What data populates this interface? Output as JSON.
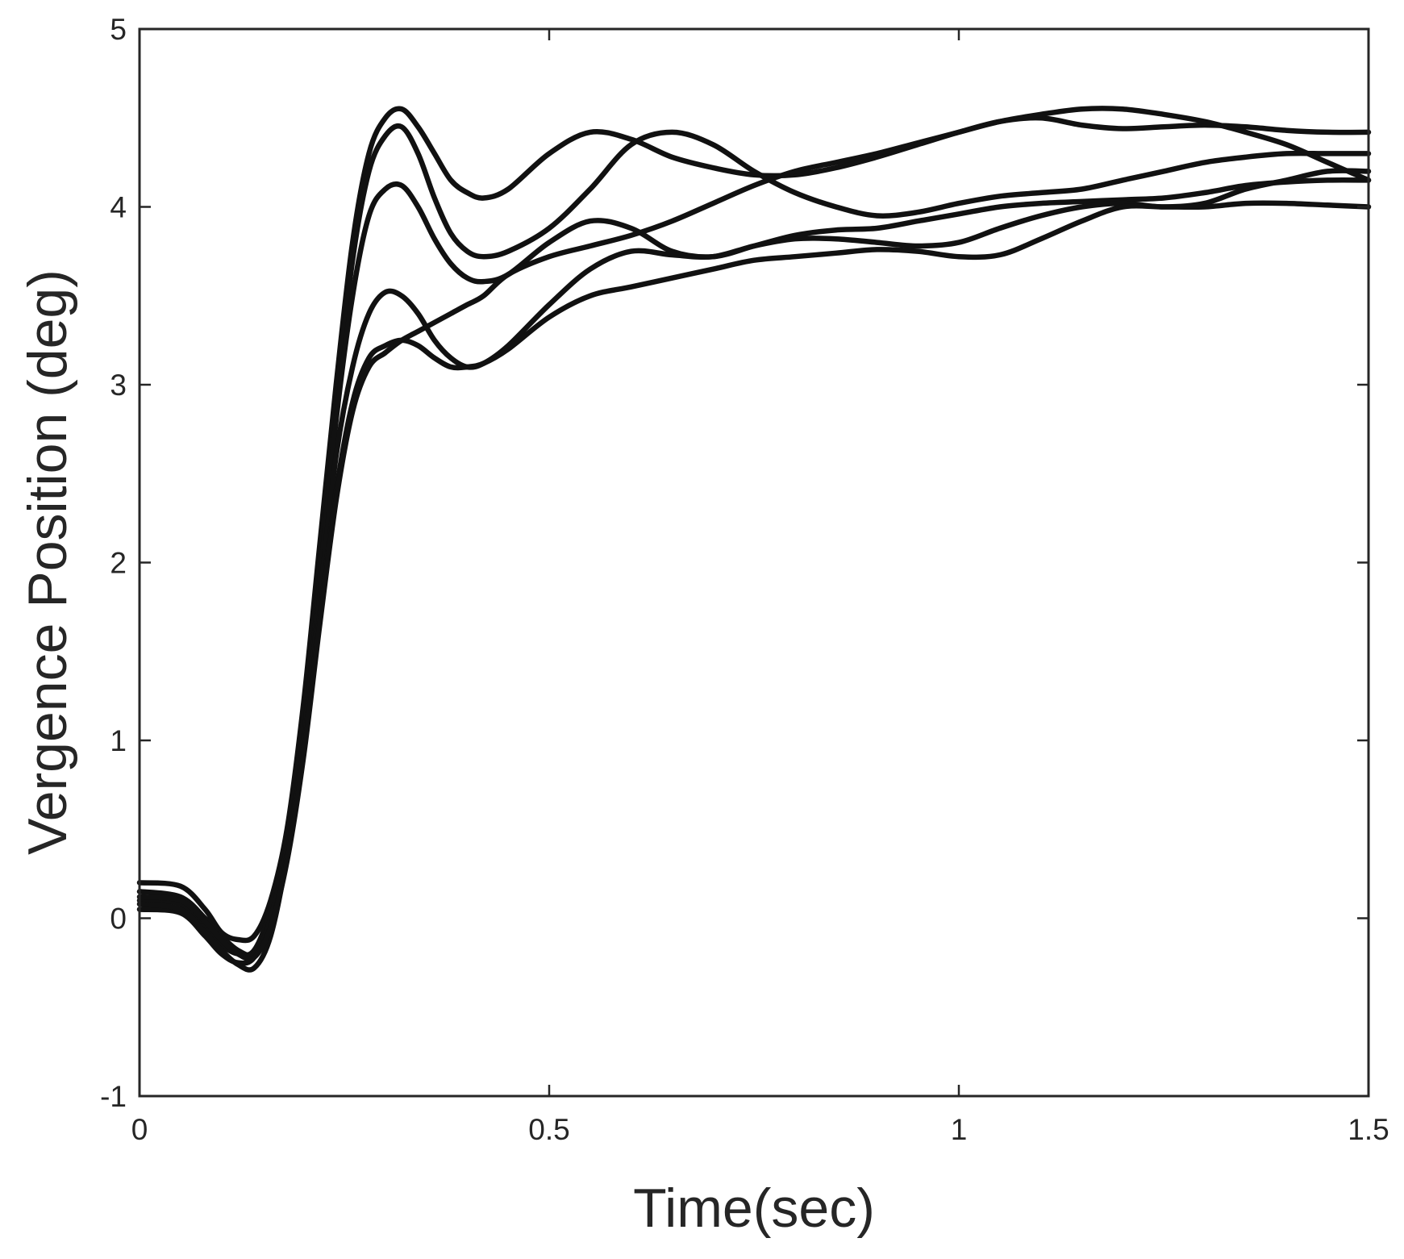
{
  "chart_data": {
    "type": "line",
    "title": "",
    "xlabel": "Time(sec)",
    "ylabel": "Vergence Position (deg)",
    "xlim": [
      0,
      1.5
    ],
    "ylim": [
      -1,
      5
    ],
    "xticks": [
      0,
      0.5,
      1,
      1.5
    ],
    "xtick_labels": [
      "0",
      "0.5",
      "1",
      "1.5"
    ],
    "yticks": [
      -1,
      0,
      1,
      2,
      3,
      4,
      5
    ],
    "ytick_labels": [
      "-1",
      "0",
      "1",
      "2",
      "3",
      "4",
      "5"
    ],
    "grid": false,
    "legend": "none",
    "line_color": "#111111",
    "series": [
      {
        "x": [
          0,
          0.05,
          0.08,
          0.1,
          0.12,
          0.14,
          0.16,
          0.18,
          0.2,
          0.22,
          0.24,
          0.26,
          0.28,
          0.3,
          0.32,
          0.34,
          0.36,
          0.38,
          0.4,
          0.42,
          0.45,
          0.5,
          0.55,
          0.6,
          0.65,
          0.7,
          0.75,
          0.8,
          0.85,
          0.9,
          0.95,
          1.0,
          1.05,
          1.1,
          1.15,
          1.2,
          1.25,
          1.3,
          1.35,
          1.4,
          1.45,
          1.5
        ],
        "y": [
          0.2,
          0.18,
          0.05,
          -0.08,
          -0.12,
          -0.1,
          0.1,
          0.5,
          1.2,
          2.1,
          3.0,
          3.8,
          4.3,
          4.5,
          4.55,
          4.45,
          4.3,
          4.15,
          4.08,
          4.05,
          4.1,
          4.3,
          4.42,
          4.38,
          4.28,
          4.22,
          4.18,
          4.18,
          4.22,
          4.28,
          4.35,
          4.42,
          4.48,
          4.5,
          4.46,
          4.44,
          4.45,
          4.46,
          4.45,
          4.43,
          4.42,
          4.42
        ]
      },
      {
        "x": [
          0,
          0.05,
          0.08,
          0.1,
          0.12,
          0.14,
          0.16,
          0.18,
          0.2,
          0.22,
          0.24,
          0.26,
          0.28,
          0.3,
          0.32,
          0.34,
          0.36,
          0.38,
          0.4,
          0.42,
          0.45,
          0.5,
          0.55,
          0.6,
          0.65,
          0.7,
          0.75,
          0.8,
          0.85,
          0.9,
          0.95,
          1.0,
          1.05,
          1.1,
          1.15,
          1.2,
          1.25,
          1.3,
          1.35,
          1.4,
          1.45,
          1.5
        ],
        "y": [
          0.1,
          0.08,
          -0.05,
          -0.15,
          -0.2,
          -0.18,
          0.05,
          0.45,
          1.1,
          2.0,
          2.9,
          3.7,
          4.2,
          4.4,
          4.45,
          4.3,
          4.05,
          3.85,
          3.75,
          3.72,
          3.75,
          3.88,
          4.1,
          4.35,
          4.42,
          4.35,
          4.2,
          4.08,
          4.0,
          3.95,
          3.97,
          4.02,
          4.06,
          4.08,
          4.1,
          4.15,
          4.2,
          4.25,
          4.28,
          4.3,
          4.3,
          4.3
        ]
      },
      {
        "x": [
          0,
          0.05,
          0.08,
          0.1,
          0.12,
          0.14,
          0.16,
          0.18,
          0.2,
          0.22,
          0.24,
          0.26,
          0.28,
          0.3,
          0.32,
          0.34,
          0.36,
          0.38,
          0.4,
          0.42,
          0.45,
          0.5,
          0.55,
          0.6,
          0.65,
          0.7,
          0.75,
          0.8,
          0.85,
          0.9,
          0.95,
          1.0,
          1.05,
          1.1,
          1.15,
          1.2,
          1.25,
          1.3,
          1.35,
          1.4,
          1.45,
          1.5
        ],
        "y": [
          0.05,
          0.03,
          -0.1,
          -0.2,
          -0.25,
          -0.22,
          0.0,
          0.4,
          1.0,
          1.9,
          2.8,
          3.5,
          3.95,
          4.1,
          4.12,
          4.0,
          3.82,
          3.68,
          3.6,
          3.58,
          3.62,
          3.8,
          3.92,
          3.88,
          3.75,
          3.72,
          3.78,
          3.84,
          3.87,
          3.88,
          3.92,
          3.96,
          4.0,
          4.02,
          4.03,
          4.04,
          4.05,
          4.08,
          4.12,
          4.14,
          4.15,
          4.15
        ]
      },
      {
        "x": [
          0,
          0.05,
          0.08,
          0.1,
          0.12,
          0.14,
          0.16,
          0.18,
          0.2,
          0.22,
          0.24,
          0.26,
          0.28,
          0.3,
          0.32,
          0.34,
          0.36,
          0.38,
          0.4,
          0.42,
          0.45,
          0.5,
          0.55,
          0.6,
          0.65,
          0.7,
          0.75,
          0.8,
          0.85,
          0.9,
          0.95,
          1.0,
          1.05,
          1.1,
          1.15,
          1.2,
          1.25,
          1.3,
          1.35,
          1.4,
          1.45,
          1.5
        ],
        "y": [
          0.08,
          0.05,
          -0.08,
          -0.18,
          -0.26,
          -0.28,
          -0.1,
          0.35,
          1.0,
          1.8,
          2.6,
          3.1,
          3.4,
          3.52,
          3.5,
          3.4,
          3.25,
          3.15,
          3.1,
          3.12,
          3.22,
          3.45,
          3.65,
          3.75,
          3.73,
          3.72,
          3.78,
          3.82,
          3.82,
          3.8,
          3.78,
          3.8,
          3.88,
          3.95,
          4.0,
          4.02,
          4.0,
          4.02,
          4.1,
          4.15,
          4.2,
          4.2
        ]
      },
      {
        "x": [
          0,
          0.05,
          0.08,
          0.1,
          0.12,
          0.14,
          0.16,
          0.18,
          0.2,
          0.22,
          0.24,
          0.26,
          0.28,
          0.3,
          0.32,
          0.34,
          0.36,
          0.38,
          0.4,
          0.42,
          0.45,
          0.5,
          0.55,
          0.6,
          0.65,
          0.7,
          0.75,
          0.8,
          0.85,
          0.9,
          0.95,
          1.0,
          1.05,
          1.1,
          1.15,
          1.2,
          1.25,
          1.3,
          1.35,
          1.4,
          1.45,
          1.5
        ],
        "y": [
          0.15,
          0.12,
          0.0,
          -0.1,
          -0.18,
          -0.2,
          -0.05,
          0.35,
          0.95,
          1.7,
          2.4,
          2.9,
          3.15,
          3.22,
          3.25,
          3.22,
          3.15,
          3.1,
          3.1,
          3.12,
          3.2,
          3.38,
          3.5,
          3.55,
          3.6,
          3.65,
          3.7,
          3.72,
          3.74,
          3.76,
          3.75,
          3.72,
          3.73,
          3.82,
          3.92,
          4.0,
          4.0,
          4.0,
          4.02,
          4.02,
          4.01,
          4.0
        ]
      },
      {
        "x": [
          0,
          0.05,
          0.08,
          0.1,
          0.12,
          0.14,
          0.16,
          0.18,
          0.2,
          0.22,
          0.24,
          0.26,
          0.28,
          0.3,
          0.32,
          0.34,
          0.36,
          0.38,
          0.4,
          0.42,
          0.45,
          0.5,
          0.55,
          0.6,
          0.65,
          0.7,
          0.75,
          0.8,
          0.85,
          0.9,
          0.95,
          1.0,
          1.05,
          1.1,
          1.15,
          1.2,
          1.25,
          1.3,
          1.35,
          1.4,
          1.45,
          1.5
        ],
        "y": [
          0.12,
          0.1,
          -0.02,
          -0.12,
          -0.2,
          -0.22,
          -0.05,
          0.32,
          0.9,
          1.65,
          2.35,
          2.85,
          3.1,
          3.18,
          3.25,
          3.3,
          3.35,
          3.4,
          3.45,
          3.5,
          3.62,
          3.72,
          3.78,
          3.84,
          3.92,
          4.02,
          4.12,
          4.2,
          4.25,
          4.3,
          4.36,
          4.42,
          4.48,
          4.52,
          4.55,
          4.55,
          4.52,
          4.48,
          4.42,
          4.35,
          4.25,
          4.15
        ]
      }
    ]
  }
}
